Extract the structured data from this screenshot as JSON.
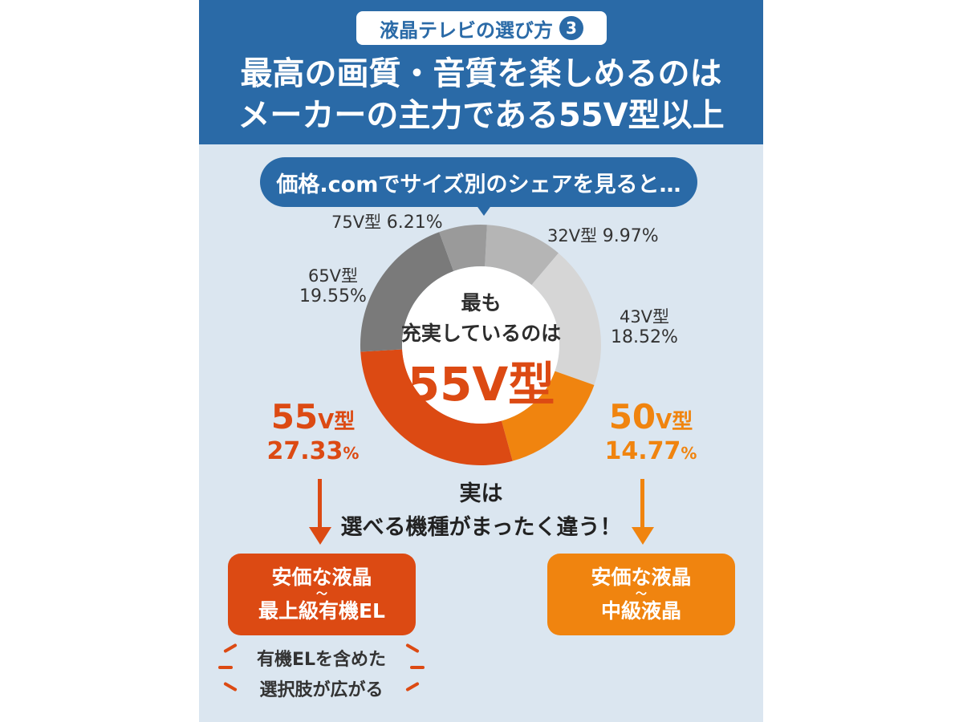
{
  "header": {
    "tag": "液晶テレビの選び方",
    "tag_number": "3",
    "title_line1": "最高の画質・音質を楽しめるのは",
    "title_line2": "メーカーの主力である55V型以上"
  },
  "bubble_text": "価格.comでサイズ別のシェアを見ると…",
  "center": {
    "line1": "最も",
    "line2": "充実しているのは",
    "big": "55V型"
  },
  "labels": {
    "s75_name": "75V型",
    "s75_pct": "6.21%",
    "s32_name": "32V型",
    "s32_pct": "9.97%",
    "s65_name": "65V型",
    "s65_pct": "19.55%",
    "s43_name": "43V型",
    "s43_pct": "18.52%",
    "s55_name_num": "55",
    "s55_name_unit": "V型",
    "s55_pct_num": "27.33",
    "s55_pct_unit": "%",
    "s50_name_num": "50",
    "s50_name_unit": "V型",
    "s50_pct_num": "14.77",
    "s50_pct_unit": "%"
  },
  "middle": {
    "line1": "実は",
    "line2": "選べる機種がまったく違う！"
  },
  "left_box": {
    "line1": "安価な液晶",
    "tilde": "〜",
    "line2": "最上級有機EL"
  },
  "right_box": {
    "line1": "安価な液晶",
    "tilde": "〜",
    "line2": "中級液晶"
  },
  "note": {
    "line1": "有機ELを含めた",
    "line2": "選択肢が広がる"
  },
  "colors": {
    "header": "#2a6aa7",
    "accent55": "#dc4a13",
    "accent50": "#f0840f",
    "panel": "#dbe6f0"
  },
  "chart_data": {
    "type": "pie",
    "categories": [
      "32V型",
      "43V型",
      "50V型",
      "55V型",
      "65V型",
      "75V型"
    ],
    "values": [
      9.97,
      18.52,
      14.77,
      27.33,
      19.55,
      6.21
    ],
    "colors": [
      "#b5b5b5",
      "#d6d6d6",
      "#f0840f",
      "#dc4a13",
      "#7a7a7a",
      "#9a9a9a"
    ]
  }
}
